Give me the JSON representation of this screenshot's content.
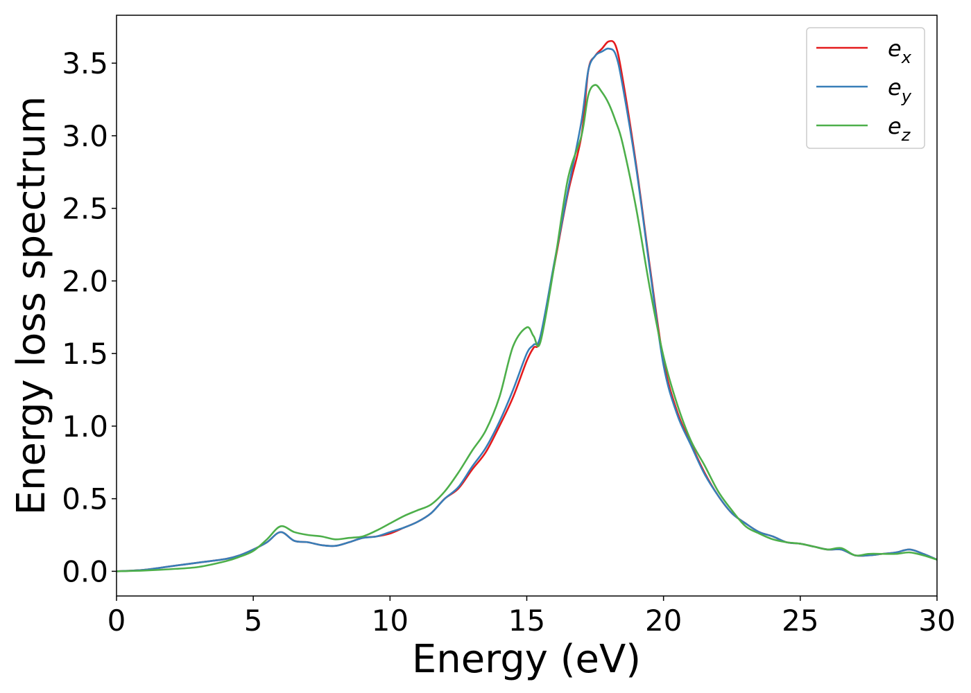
{
  "chart_data": {
    "type": "line",
    "title": "",
    "xlabel": "Energy (eV)",
    "ylabel": "Energy loss spectrum",
    "xlim": [
      0,
      30
    ],
    "ylim": [
      -0.17,
      3.83
    ],
    "xticks": [
      0,
      5,
      10,
      15,
      20,
      25,
      30
    ],
    "xtick_labels": [
      "0",
      "5",
      "10",
      "15",
      "20",
      "25",
      "30"
    ],
    "yticks": [
      0.0,
      0.5,
      1.0,
      1.5,
      2.0,
      2.5,
      3.0,
      3.5
    ],
    "ytick_labels": [
      "0.0",
      "0.5",
      "1.0",
      "1.5",
      "2.0",
      "2.5",
      "3.0",
      "3.5"
    ],
    "grid": false,
    "legend_position": "top-right",
    "x": [
      0,
      1,
      2,
      3,
      4,
      4.5,
      5,
      5.5,
      6,
      6.5,
      7,
      7.5,
      8,
      8.5,
      9,
      9.5,
      10,
      10.5,
      11,
      11.5,
      12,
      12.5,
      13,
      13.5,
      14,
      14.5,
      15,
      15.25,
      15.5,
      16,
      16.5,
      17,
      17.25,
      17.5,
      17.75,
      18,
      18.25,
      18.5,
      19,
      19.5,
      20,
      20.5,
      21,
      21.5,
      22,
      22.5,
      23,
      23.5,
      24,
      24.5,
      25,
      25.5,
      26,
      26.5,
      27,
      27.5,
      28,
      28.5,
      29,
      29.5,
      30
    ],
    "series": [
      {
        "name": "e_x",
        "label_base": "e",
        "label_sub": "x",
        "color": "#e41a1c",
        "values": [
          0.0,
          0.01,
          0.035,
          0.06,
          0.085,
          0.11,
          0.15,
          0.2,
          0.27,
          0.21,
          0.2,
          0.18,
          0.175,
          0.2,
          0.23,
          0.24,
          0.26,
          0.3,
          0.34,
          0.4,
          0.5,
          0.57,
          0.7,
          0.82,
          1.0,
          1.2,
          1.45,
          1.54,
          1.6,
          2.1,
          2.6,
          3.0,
          3.45,
          3.55,
          3.6,
          3.65,
          3.62,
          3.4,
          2.8,
          2.1,
          1.45,
          1.1,
          0.88,
          0.68,
          0.52,
          0.4,
          0.33,
          0.27,
          0.24,
          0.2,
          0.19,
          0.17,
          0.15,
          0.15,
          0.11,
          0.11,
          0.12,
          0.13,
          0.15,
          0.12,
          0.08
        ]
      },
      {
        "name": "e_y",
        "label_base": "e",
        "label_sub": "y",
        "color": "#377eb8",
        "values": [
          0.0,
          0.01,
          0.035,
          0.06,
          0.085,
          0.11,
          0.15,
          0.2,
          0.27,
          0.21,
          0.2,
          0.18,
          0.175,
          0.2,
          0.23,
          0.24,
          0.27,
          0.3,
          0.34,
          0.4,
          0.5,
          0.58,
          0.72,
          0.85,
          1.03,
          1.25,
          1.5,
          1.56,
          1.62,
          2.12,
          2.62,
          3.1,
          3.45,
          3.55,
          3.58,
          3.6,
          3.56,
          3.35,
          2.78,
          2.08,
          1.42,
          1.08,
          0.87,
          0.67,
          0.52,
          0.4,
          0.33,
          0.27,
          0.24,
          0.2,
          0.19,
          0.17,
          0.15,
          0.15,
          0.11,
          0.11,
          0.12,
          0.13,
          0.15,
          0.12,
          0.08
        ]
      },
      {
        "name": "e_z",
        "label_base": "e",
        "label_sub": "z",
        "color": "#4daf4a",
        "values": [
          0.0,
          0.005,
          0.015,
          0.03,
          0.07,
          0.1,
          0.14,
          0.22,
          0.31,
          0.27,
          0.25,
          0.24,
          0.22,
          0.23,
          0.24,
          0.28,
          0.33,
          0.38,
          0.42,
          0.46,
          0.55,
          0.68,
          0.83,
          0.97,
          1.2,
          1.55,
          1.68,
          1.62,
          1.58,
          2.1,
          2.7,
          3.0,
          3.28,
          3.35,
          3.3,
          3.22,
          3.1,
          2.95,
          2.5,
          1.95,
          1.48,
          1.15,
          0.9,
          0.73,
          0.55,
          0.42,
          0.31,
          0.26,
          0.22,
          0.2,
          0.19,
          0.17,
          0.15,
          0.16,
          0.11,
          0.12,
          0.12,
          0.12,
          0.13,
          0.11,
          0.08
        ]
      }
    ]
  }
}
